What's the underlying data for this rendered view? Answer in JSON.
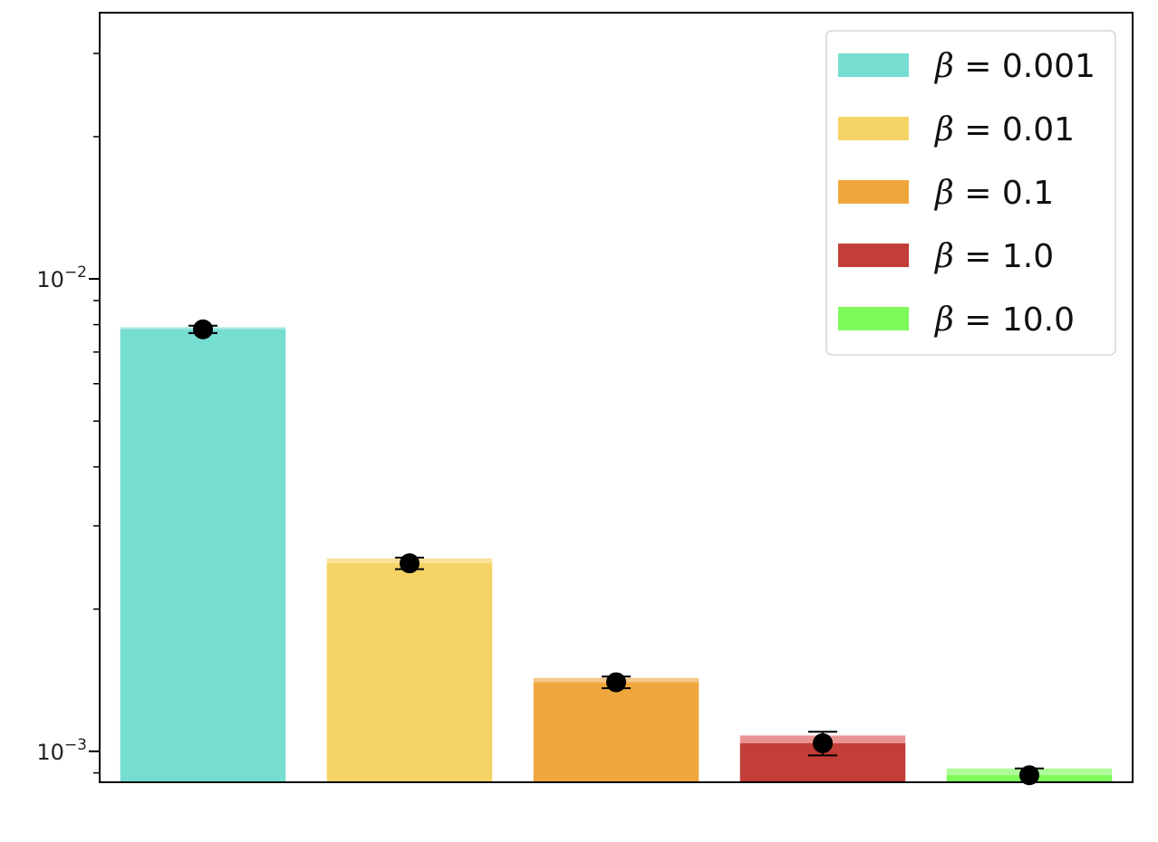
{
  "chart_data": {
    "type": "bar",
    "title": "",
    "xlabel": "",
    "ylabel": "",
    "yscale": "log",
    "ylim": [
      0.00086,
      0.0366
    ],
    "y_major_ticks": [
      {
        "value": 0.01,
        "base": "10",
        "exp": "−2"
      },
      {
        "value": 0.001,
        "base": "10",
        "exp": "−3"
      }
    ],
    "grid": false,
    "legend_position": "top-right",
    "series": [
      {
        "name": "β = 0.001",
        "symbol": "β",
        "label": "= 0.001",
        "value": 0.0079,
        "mean": 0.00782,
        "err": 0.00014,
        "color": "#76ddd1",
        "cap_color": "#a8eae3"
      },
      {
        "name": "β = 0.01",
        "symbol": "β",
        "label": "= 0.01",
        "value": 0.00256,
        "mean": 0.0025,
        "err": 7e-05,
        "color": "#f6d365",
        "cap_color": "#f9e199"
      },
      {
        "name": "β = 0.1",
        "symbol": "β",
        "label": "= 0.1",
        "value": 0.00143,
        "mean": 0.0014,
        "err": 4e-05,
        "color": "#efa73d",
        "cap_color": "#f5c788"
      },
      {
        "name": "β = 1.0",
        "symbol": "β",
        "label": "= 1.0",
        "value": 0.00108,
        "mean": 0.00104,
        "err": 6e-05,
        "color": "#c23e36",
        "cap_color": "#e99492"
      },
      {
        "name": "β = 10.0",
        "symbol": "β",
        "label": "= 10.0",
        "value": 0.00092,
        "mean": 0.00089,
        "err": 3e-05,
        "color": "#7efa5a",
        "cap_color": "#aefc9a"
      }
    ]
  }
}
